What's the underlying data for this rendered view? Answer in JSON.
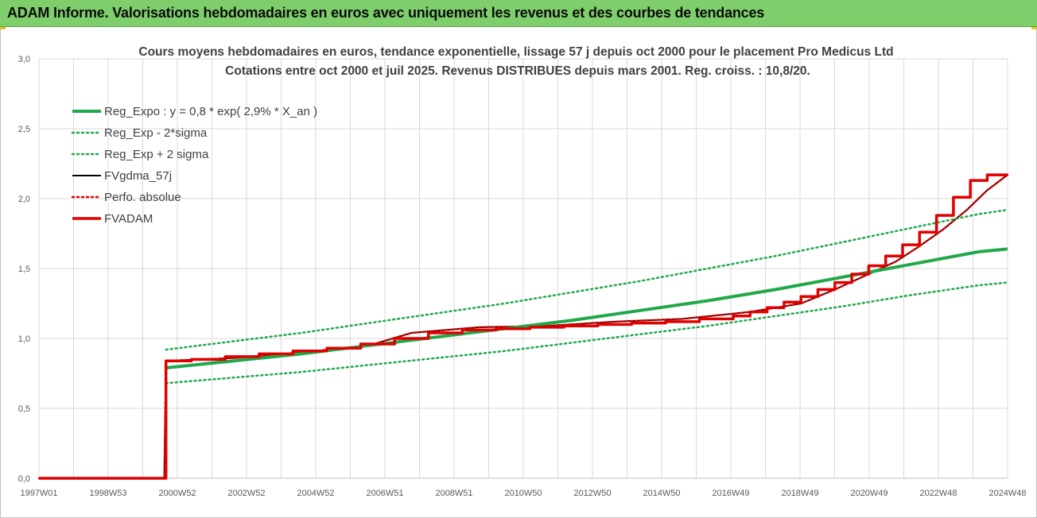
{
  "window": {
    "title": "ADAM Informe. Valorisations hebdomadaires en euros avec uniquement les revenus et des courbes de tendances"
  },
  "colors": {
    "banner": "#7fce6c",
    "reg": "#21a84a",
    "fvgdma": "#000000",
    "fvadam": "#e00000",
    "grid": "#d9d9d9"
  },
  "chart_data": {
    "type": "line",
    "title": "Cours moyens hebdomadaires en euros, tendance exponentielle, lissage 57 j depuis oct 2000 pour le placement Pro Medicus Ltd",
    "subtitle": "Cotations entre oct 2000 et juil 2025. Revenus DISTRIBUES depuis mars 2001. Reg. croiss. : 10,8/20.",
    "xlabel": "",
    "ylabel": "",
    "x_ticks": [
      "1997W01",
      "1998W53",
      "2000W52",
      "2002W52",
      "2004W52",
      "2006W51",
      "2008W51",
      "2010W50",
      "2012W50",
      "2014W50",
      "2016W49",
      "2018W49",
      "2020W49",
      "2022W48",
      "2024W48"
    ],
    "x_range": [
      1997.0,
      2025.6
    ],
    "y_ticks": [
      "0,0",
      "0,5",
      "1,0",
      "1,5",
      "2,0",
      "2,5",
      "3,0"
    ],
    "ylim": [
      0,
      3
    ],
    "grid": true,
    "legend_position": "top-left",
    "series": [
      {
        "name": "Reg_Expo : y = 0,8 * exp( 2,9% *  X_an )",
        "style": "solid-thick",
        "color": "#21a84a",
        "x": [
          2000.75,
          2002.75,
          2004.75,
          2006.75,
          2008.75,
          2010.75,
          2012.75,
          2014.75,
          2016.75,
          2018.75,
          2020.75,
          2022.75,
          2024.75,
          2025.6
        ],
        "y": [
          0.79,
          0.84,
          0.89,
          0.95,
          1.01,
          1.07,
          1.13,
          1.2,
          1.27,
          1.35,
          1.44,
          1.53,
          1.62,
          1.64
        ]
      },
      {
        "name": "Reg_Exp - 2*sigma",
        "style": "dotted",
        "color": "#21a84a",
        "x": [
          2000.75,
          2002.75,
          2004.75,
          2006.75,
          2008.75,
          2010.75,
          2012.75,
          2014.75,
          2016.75,
          2018.75,
          2020.75,
          2022.75,
          2024.75,
          2025.6
        ],
        "y": [
          0.68,
          0.72,
          0.76,
          0.81,
          0.86,
          0.91,
          0.97,
          1.03,
          1.09,
          1.16,
          1.23,
          1.31,
          1.38,
          1.4
        ]
      },
      {
        "name": "Reg_Exp + 2 sigma",
        "style": "dotted",
        "color": "#21a84a",
        "x": [
          2000.75,
          2002.75,
          2004.75,
          2006.75,
          2008.75,
          2010.75,
          2012.75,
          2014.75,
          2016.75,
          2018.75,
          2020.75,
          2022.75,
          2024.75,
          2025.6
        ],
        "y": [
          0.92,
          0.98,
          1.04,
          1.11,
          1.18,
          1.25,
          1.33,
          1.41,
          1.5,
          1.59,
          1.69,
          1.79,
          1.89,
          1.92
        ]
      },
      {
        "name": "FVgdma_57j",
        "style": "solid",
        "color": "#000000",
        "x": [
          1997.0,
          2000.7,
          2000.75,
          2002.75,
          2004.75,
          2006.75,
          2008.0,
          2010.0,
          2012.0,
          2014.0,
          2016.0,
          2018.0,
          2019.5,
          2020.5,
          2021.5,
          2022.3,
          2023.0,
          2023.7,
          2024.4,
          2025.0,
          2025.6
        ],
        "y": [
          0.0,
          0.0,
          0.84,
          0.86,
          0.9,
          0.95,
          1.04,
          1.08,
          1.09,
          1.12,
          1.14,
          1.19,
          1.25,
          1.35,
          1.46,
          1.55,
          1.66,
          1.78,
          1.92,
          2.06,
          2.17
        ]
      },
      {
        "name": "Perfo. absolue",
        "style": "dotted",
        "color": "#e00000",
        "x": [
          1997.0,
          2000.7,
          2000.75,
          2002.75,
          2004.75,
          2006.75,
          2008.0,
          2010.0,
          2012.0,
          2014.0,
          2016.0,
          2018.0,
          2019.5,
          2020.5,
          2021.5,
          2022.3,
          2023.0,
          2023.7,
          2024.4,
          2025.0,
          2025.6
        ],
        "y": [
          0.0,
          0.0,
          0.84,
          0.86,
          0.9,
          0.95,
          1.04,
          1.08,
          1.09,
          1.12,
          1.14,
          1.19,
          1.25,
          1.35,
          1.46,
          1.55,
          1.66,
          1.78,
          1.92,
          2.06,
          2.17
        ]
      },
      {
        "name": "FVADAM",
        "style": "step-thick",
        "color": "#e00000",
        "x": [
          1997.0,
          2000.7,
          2000.75,
          2001.5,
          2002.5,
          2003.5,
          2004.5,
          2005.5,
          2006.5,
          2007.5,
          2008.5,
          2009.5,
          2010.5,
          2011.5,
          2012.5,
          2013.5,
          2014.5,
          2015.5,
          2016.5,
          2017.5,
          2018.0,
          2018.5,
          2019.0,
          2019.5,
          2020.0,
          2020.5,
          2021.0,
          2021.5,
          2022.0,
          2022.5,
          2023.0,
          2023.5,
          2024.0,
          2024.5,
          2025.0
        ],
        "y": [
          0.0,
          0.0,
          0.84,
          0.85,
          0.87,
          0.89,
          0.91,
          0.93,
          0.96,
          1.0,
          1.04,
          1.06,
          1.07,
          1.08,
          1.09,
          1.1,
          1.11,
          1.12,
          1.14,
          1.16,
          1.19,
          1.22,
          1.26,
          1.3,
          1.35,
          1.4,
          1.46,
          1.52,
          1.59,
          1.67,
          1.76,
          1.88,
          2.01,
          2.13,
          2.17
        ]
      }
    ]
  }
}
